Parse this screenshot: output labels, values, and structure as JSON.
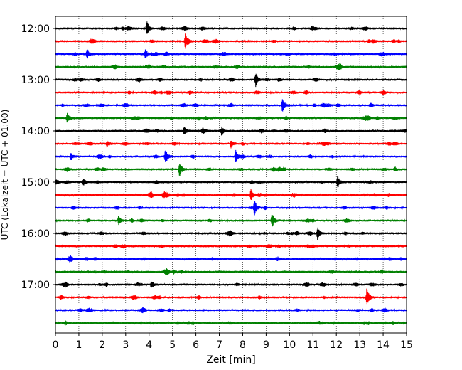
{
  "chart_data": {
    "type": "line",
    "title": "",
    "xlabel": "Zeit  [min]",
    "ylabel": "UTC (Lokalzeit = UTC + 01:00)",
    "xlim": [
      0,
      15
    ],
    "x_ticks": [
      "0",
      "1",
      "2",
      "3",
      "4",
      "5",
      "6",
      "7",
      "8",
      "9",
      "10",
      "11",
      "12",
      "13",
      "14",
      "15"
    ],
    "y_tick_labels": [
      "12:00",
      "13:00",
      "14:00",
      "15:00",
      "16:00",
      "17:00"
    ],
    "y_tick_rows": [
      0,
      4,
      8,
      12,
      16,
      20
    ],
    "grid_x": true,
    "rows": 24,
    "row_start": "12:00",
    "row_step_minutes": 15,
    "row_colors": [
      "#000000",
      "#ff0000",
      "#0000ff",
      "#008000"
    ],
    "events": [
      {
        "row": 0,
        "x": 3.9,
        "amp": 1.0
      },
      {
        "row": 1,
        "x": 5.55,
        "amp": 1.0
      },
      {
        "row": 2,
        "x": 1.35,
        "amp": 0.7
      },
      {
        "row": 2,
        "x": 3.85,
        "amp": 0.4
      },
      {
        "row": 4,
        "x": 8.55,
        "amp": 0.9
      },
      {
        "row": 6,
        "x": 9.7,
        "amp": 0.9
      },
      {
        "row": 7,
        "x": 0.5,
        "amp": 0.7
      },
      {
        "row": 8,
        "x": 5.5,
        "amp": 0.6
      },
      {
        "row": 8,
        "x": 7.1,
        "amp": 0.4
      },
      {
        "row": 9,
        "x": 2.2,
        "amp": 0.4
      },
      {
        "row": 9,
        "x": 7.5,
        "amp": 0.5
      },
      {
        "row": 10,
        "x": 0.65,
        "amp": 0.5
      },
      {
        "row": 10,
        "x": 4.7,
        "amp": 1.0
      },
      {
        "row": 10,
        "x": 7.7,
        "amp": 0.9
      },
      {
        "row": 11,
        "x": 5.3,
        "amp": 1.0
      },
      {
        "row": 12,
        "x": 1.2,
        "amp": 0.4
      },
      {
        "row": 12,
        "x": 12.05,
        "amp": 0.9
      },
      {
        "row": 13,
        "x": 8.35,
        "amp": 0.7
      },
      {
        "row": 14,
        "x": 8.5,
        "amp": 1.0
      },
      {
        "row": 15,
        "x": 2.7,
        "amp": 0.6
      },
      {
        "row": 15,
        "x": 9.25,
        "amp": 1.0
      },
      {
        "row": 16,
        "x": 11.2,
        "amp": 0.8
      },
      {
        "row": 20,
        "x": 4.1,
        "amp": 0.4
      },
      {
        "row": 21,
        "x": 13.3,
        "amp": 1.0
      }
    ]
  }
}
